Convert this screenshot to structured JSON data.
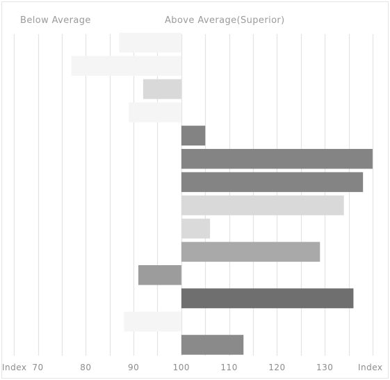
{
  "chart_data": {
    "type": "bar",
    "orientation": "horizontal",
    "header": {
      "left": "Below Average",
      "right": "Above Average(Superior)"
    },
    "x_end_labels": {
      "left": "Index",
      "right": "Index"
    },
    "x_ticks": [
      70,
      80,
      90,
      100,
      110,
      120,
      130
    ],
    "xlim": [
      62.5,
      143.5
    ],
    "baseline": 100,
    "grid": true,
    "values": [
      87,
      77,
      92,
      89,
      105,
      140,
      138,
      134,
      106,
      129,
      91,
      136,
      88,
      113
    ],
    "colors": [
      "#f5f5f5",
      "#f5f5f5",
      "#d9d9d9",
      "#f5f5f5",
      "#838383",
      "#848484",
      "#848484",
      "#d9d9d9",
      "#dadada",
      "#a9a9a9",
      "#9c9c9c",
      "#6f6f6f",
      "#f5f5f5",
      "#8a8a8a"
    ]
  }
}
